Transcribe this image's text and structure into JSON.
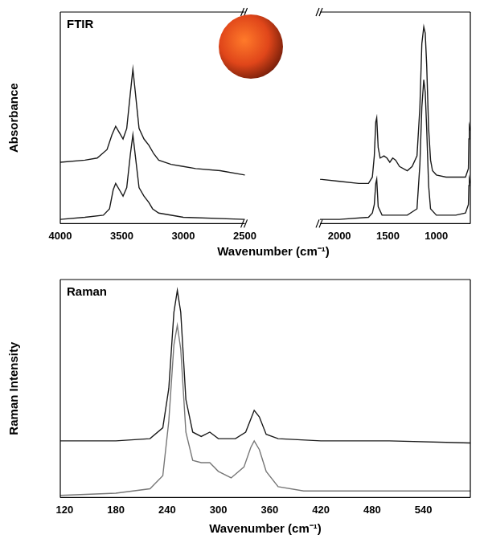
{
  "chart_data": [
    {
      "type": "line",
      "title": "FTIR",
      "x_label": "Wavenumber (cm⁻¹)",
      "y_label": "Absorbance",
      "x_segments": [
        {
          "xlim": [
            4000,
            2500
          ],
          "xticks": [
            4000,
            3500,
            3000,
            2500
          ]
        },
        {
          "xlim": [
            2200,
            650
          ],
          "xticks": [
            2000,
            1500,
            1000
          ]
        }
      ],
      "ylim": [
        0,
        1
      ],
      "tick_labels": "x",
      "grid": false,
      "series": [
        {
          "color": "#1a1a1a",
          "x": [
            4000,
            3800,
            3700,
            3620,
            3580,
            3550,
            3520,
            3490,
            3460,
            3430,
            3410,
            3390,
            3360,
            3320,
            3280,
            3240,
            3200,
            3100,
            3000,
            2900,
            2700,
            2500,
            2200,
            2000,
            1800,
            1700,
            1660,
            1640,
            1625,
            1615,
            1600,
            1580,
            1540,
            1510,
            1480,
            1450,
            1420,
            1380,
            1300,
            1250,
            1200,
            1170,
            1150,
            1130,
            1115,
            1100,
            1080,
            1060,
            1040,
            1000,
            900,
            800,
            700,
            670,
            665,
            660,
            650
          ],
          "values": [
            0.29,
            0.3,
            0.31,
            0.35,
            0.42,
            0.46,
            0.43,
            0.4,
            0.45,
            0.62,
            0.73,
            0.62,
            0.45,
            0.4,
            0.37,
            0.33,
            0.3,
            0.28,
            0.27,
            0.26,
            0.25,
            0.23,
            0.21,
            0.2,
            0.19,
            0.19,
            0.22,
            0.32,
            0.48,
            0.5,
            0.36,
            0.31,
            0.32,
            0.31,
            0.29,
            0.31,
            0.3,
            0.27,
            0.25,
            0.27,
            0.32,
            0.55,
            0.85,
            0.93,
            0.9,
            0.75,
            0.45,
            0.3,
            0.25,
            0.23,
            0.22,
            0.22,
            0.22,
            0.26,
            0.4,
            0.46,
            0.44
          ]
        },
        {
          "color": "#1a1a1a",
          "x": [
            4000,
            3800,
            3650,
            3600,
            3570,
            3550,
            3520,
            3490,
            3460,
            3430,
            3410,
            3390,
            3360,
            3320,
            3280,
            3250,
            3200,
            3000,
            2500,
            2200,
            2000,
            1700,
            1660,
            1640,
            1625,
            1615,
            1600,
            1560,
            1500,
            1300,
            1200,
            1170,
            1150,
            1130,
            1115,
            1100,
            1080,
            1060,
            1000,
            800,
            700,
            670,
            665,
            660,
            650
          ],
          "values": [
            0.02,
            0.03,
            0.04,
            0.07,
            0.16,
            0.19,
            0.16,
            0.13,
            0.17,
            0.33,
            0.42,
            0.32,
            0.17,
            0.13,
            0.1,
            0.07,
            0.05,
            0.03,
            0.02,
            0.02,
            0.02,
            0.03,
            0.05,
            0.09,
            0.19,
            0.21,
            0.08,
            0.04,
            0.04,
            0.04,
            0.07,
            0.28,
            0.55,
            0.68,
            0.62,
            0.45,
            0.18,
            0.07,
            0.04,
            0.04,
            0.05,
            0.09,
            0.18,
            0.21,
            0.19
          ]
        }
      ]
    },
    {
      "type": "line",
      "title": "Raman",
      "x_label": "Wavenumber (cm⁻¹)",
      "y_label": "Raman Intensity",
      "xlim": [
        115,
        595
      ],
      "xticks": [
        120,
        180,
        240,
        300,
        360,
        420,
        480,
        540
      ],
      "ylim": [
        0,
        1
      ],
      "tick_labels": "x",
      "grid": false,
      "series": [
        {
          "color": "#1a1a1a",
          "x": [
            115,
            180,
            220,
            235,
            242,
            248,
            252,
            256,
            262,
            270,
            280,
            290,
            300,
            320,
            332,
            338,
            342,
            348,
            356,
            370,
            420,
            500,
            595
          ],
          "values": [
            0.26,
            0.26,
            0.27,
            0.32,
            0.5,
            0.85,
            0.95,
            0.85,
            0.45,
            0.3,
            0.28,
            0.3,
            0.27,
            0.27,
            0.3,
            0.36,
            0.4,
            0.37,
            0.29,
            0.27,
            0.26,
            0.26,
            0.25
          ]
        },
        {
          "color": "#777777",
          "x": [
            115,
            180,
            220,
            235,
            242,
            248,
            252,
            256,
            262,
            270,
            280,
            290,
            300,
            315,
            330,
            338,
            342,
            348,
            356,
            370,
            400,
            500,
            595
          ],
          "values": [
            0.01,
            0.02,
            0.04,
            0.1,
            0.35,
            0.7,
            0.79,
            0.68,
            0.3,
            0.17,
            0.16,
            0.16,
            0.12,
            0.09,
            0.14,
            0.23,
            0.26,
            0.22,
            0.12,
            0.05,
            0.03,
            0.03,
            0.03
          ]
        }
      ]
    }
  ]
}
